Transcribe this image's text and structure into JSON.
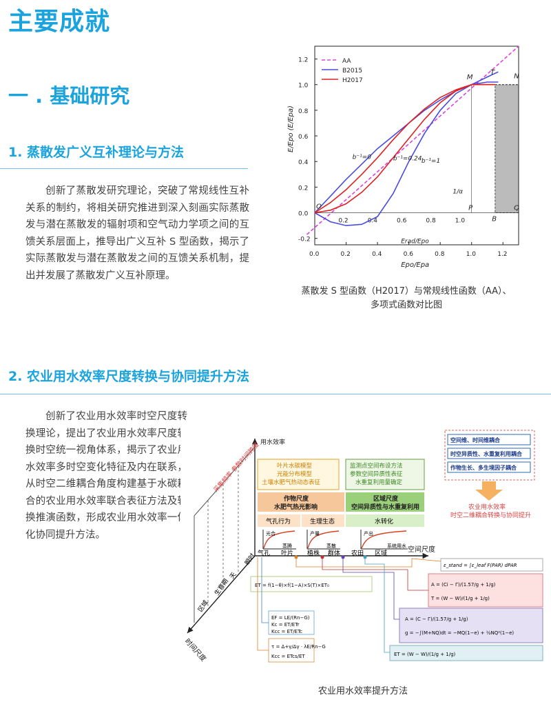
{
  "page": {
    "title": "主要成就",
    "section_title": "一 . 基础研究",
    "sub1_title": "1. 蒸散发广义互补理论与方法",
    "sub1_text": "创新了蒸散发研究理论，突破了常规线性互补关系的制约，将相关研究推进到深入刻画实际蒸散发与潜在蒸散发的辐射项和空气动力学项之间的互馈关系层面上，推导出广义互补 S 型函数，揭示了实际蒸散发与潜在蒸散发之间的互馈关系机制，提出并发展了蒸散发广义互补原理。",
    "fig1_caption_line1": "蒸散发 S 型函数（H2017）与常规线性函数（AA）、",
    "fig1_caption_line2": "多项式函数对比图",
    "sub2_title": "2. 农业用水效率尺度转换与协同提升方法",
    "sub2_text": "创新了农业用水效率时空尺度转换理论，提出了农业用水效率尺度转换时空统一视角体系，揭示了农业用水效率多时空变化特征及内在联系，从时空二维耦合角度构建基于水碳耦合的农业用水效率联合表征方法及转换推演函数，形成农业用水效率一体化协同提升方法。",
    "fig2_caption": "农业用水效率提升方法"
  },
  "chart_data": {
    "type": "line",
    "ylabel": "E/Epo (E/Epa)",
    "xlabel_inner": "Erad/Epo",
    "xlabel_outer": "Epo/Epa",
    "xlim": [
      0.0,
      1.3
    ],
    "ylim": [
      -0.25,
      1.3
    ],
    "xticks": [
      "0.0",
      "0.2",
      "0.4",
      "0.6",
      "0.8",
      "1.0",
      "1.2"
    ],
    "yticks": [
      "-0.2",
      "0.0",
      "0.2",
      "0.4",
      "0.6",
      "0.8",
      "1.0",
      "1.2"
    ],
    "inner_ticks": [
      "0.2",
      "0.4",
      "0.6",
      "0.8",
      "1.0"
    ],
    "legend": [
      "AA",
      "B2015",
      "H2017"
    ],
    "colors": {
      "AA": "#e040e0",
      "B2015": "#4a4adf",
      "H2017": "#e02020"
    },
    "annotations": {
      "O": "O",
      "M": "M",
      "T": "T",
      "N": "N",
      "P": "P",
      "B": "B",
      "Q": "Q",
      "alpha": "1/α",
      "b0": "b⁻¹=0",
      "b024": "b⁻¹=0.24",
      "b1": "b⁻¹=1"
    },
    "series": [
      {
        "name": "AA",
        "x": [
          -0.05,
          1.3
        ],
        "y": [
          -0.17,
          1.3
        ]
      },
      {
        "name": "B2015",
        "x": [
          0.0,
          0.1,
          0.2,
          0.3,
          0.4,
          0.5,
          0.6,
          0.7,
          0.8,
          0.9,
          1.0,
          1.1,
          1.17
        ],
        "y": [
          0.0,
          -0.07,
          -0.1,
          -0.09,
          -0.03,
          0.15,
          0.4,
          0.62,
          0.8,
          0.93,
          1.0,
          1.06,
          1.1
        ]
      },
      {
        "name": "B2015-b",
        "x": [
          0.0,
          0.1,
          0.2,
          0.3,
          0.4,
          0.5,
          0.6,
          0.7,
          0.8,
          0.9,
          1.0,
          1.1,
          1.17
        ],
        "y": [
          0.0,
          0.13,
          0.26,
          0.38,
          0.5,
          0.6,
          0.7,
          0.8,
          0.88,
          0.95,
          1.0,
          1.02,
          1.02
        ]
      },
      {
        "name": "H2017",
        "x": [
          0.0,
          0.1,
          0.2,
          0.3,
          0.4,
          0.5,
          0.6,
          0.7,
          0.8,
          0.9,
          1.0,
          1.05,
          1.1,
          1.15
        ],
        "y": [
          0.0,
          0.02,
          0.07,
          0.16,
          0.28,
          0.43,
          0.58,
          0.73,
          0.86,
          0.95,
          1.0,
          1.0,
          1.0,
          1.0
        ]
      },
      {
        "name": "H2017-b",
        "x": [
          0.0,
          0.1,
          0.2,
          0.3,
          0.4,
          0.5,
          0.6,
          0.7,
          0.8,
          0.9,
          1.0,
          1.1,
          1.15
        ],
        "y": [
          0.0,
          0.08,
          0.18,
          0.3,
          0.43,
          0.57,
          0.7,
          0.81,
          0.9,
          0.96,
          1.0,
          1.0,
          1.0
        ]
      }
    ]
  },
  "diagram": {
    "axis_y_label": "用水效率",
    "axis_x_label": "空间尺度",
    "axis_z_label": "时间尺度",
    "diag_note": "采集频率 参数时间跨度",
    "time_scales": [
      "区域",
      "生育期",
      "天",
      "瞬时"
    ],
    "space_scales": [
      "气孔",
      "叶片",
      "植株",
      "群体",
      "农田",
      "区域"
    ],
    "top_left_box": [
      "叶片水碳模型",
      "光能分布模型",
      "土壤水肥气热动态表征"
    ],
    "top_right_box": [
      "监测点空间布设方法",
      "参数空间异质性表征",
      "水重复利用量确定"
    ],
    "crop_scale": [
      "作物尺度",
      "水肥气热光影响"
    ],
    "region_scale": [
      "区域尺度",
      "空间异质性与水重复利用"
    ],
    "panels": [
      {
        "title": "气孔行为",
        "ylabel": "光合",
        "xlabel": "蒸腾"
      },
      {
        "title": "生理生态",
        "ylabel": "产量",
        "xlabel": "蒸散"
      },
      {
        "title": "水转化",
        "ylabel": "产出",
        "xlabel": "系统用水"
      }
    ],
    "legend_items": [
      "空间维、时间维耦合",
      "时空异质性、水重复利用耦合",
      "作物生长、多生境因子耦合"
    ],
    "arrow_text": [
      "农业用水效率",
      "时空二维耦合转换与协同提升"
    ]
  }
}
